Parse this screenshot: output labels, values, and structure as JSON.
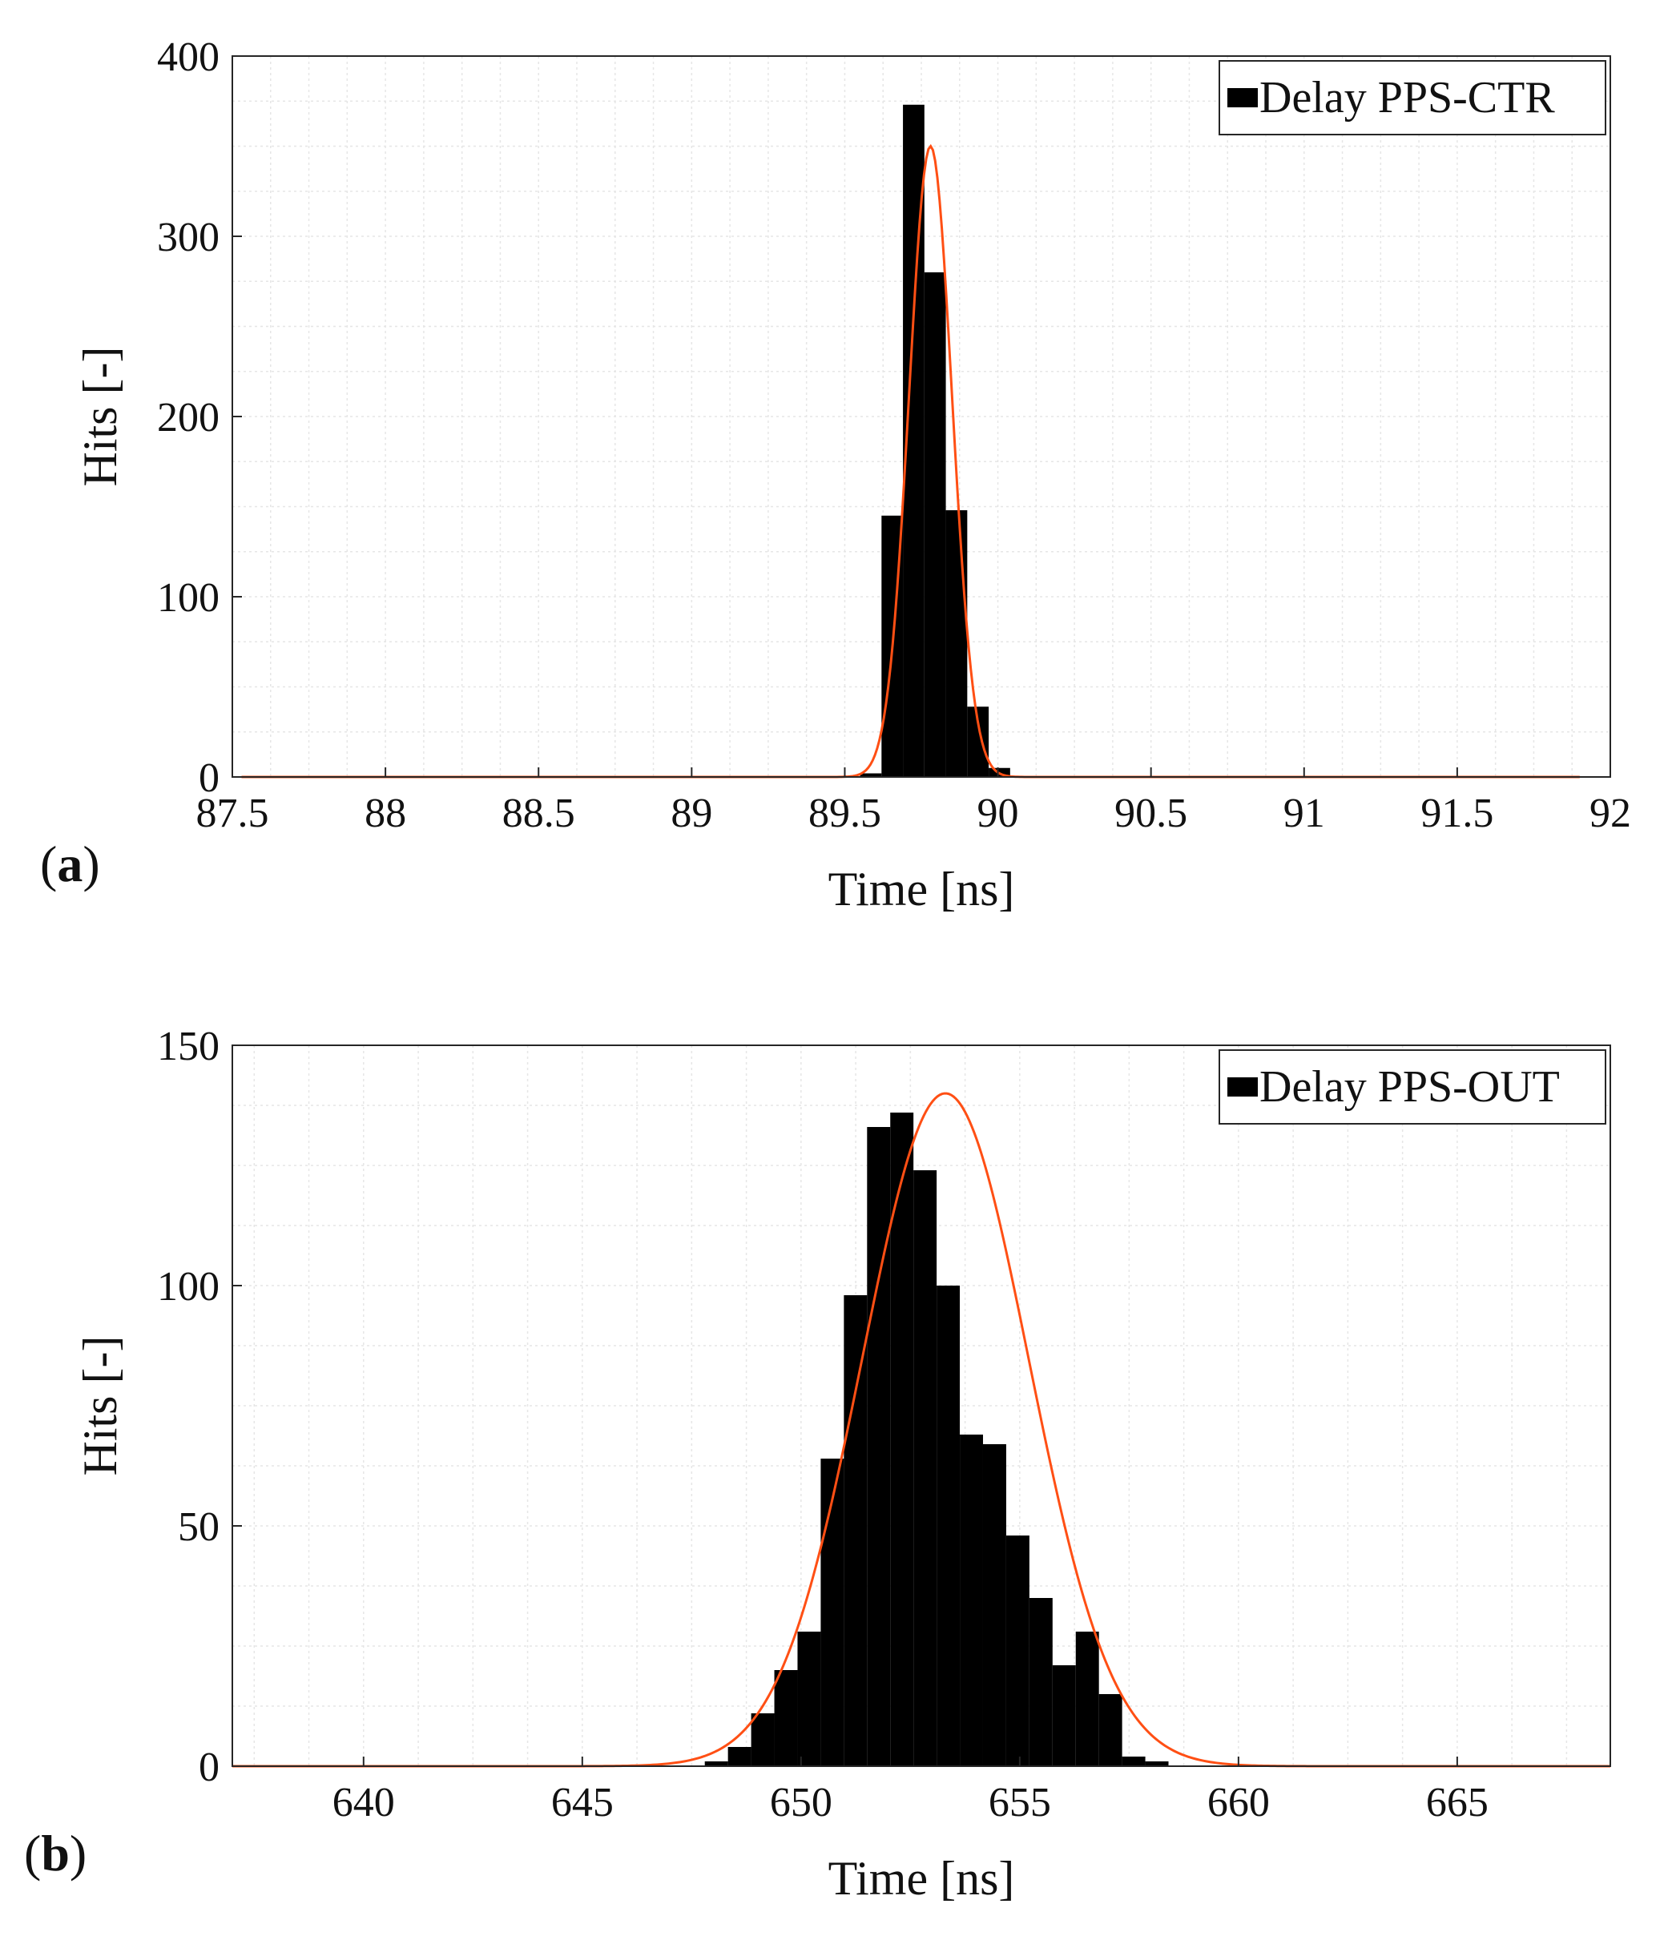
{
  "colors": {
    "bars": "#000000",
    "fit_curve": "#ff4f14",
    "grid": "#e6e6e6",
    "axes": "#262626"
  },
  "chart_data": [
    {
      "type": "bar",
      "panel_label": "a",
      "xlabel": "Time [ns]",
      "ylabel": "Hits [-]",
      "xlim": [
        87.5,
        92
      ],
      "ylim": [
        0,
        400
      ],
      "xticks": [
        87.5,
        88,
        88.5,
        89,
        89.5,
        90,
        90.5,
        91,
        91.5,
        92
      ],
      "xtick_labels": [
        "87.5",
        "88",
        "88.5",
        "89",
        "89.5",
        "90",
        "90.5",
        "91",
        "91.5",
        "92"
      ],
      "yticks": [
        0,
        100,
        200,
        300,
        400
      ],
      "ytick_labels": [
        "0",
        "100",
        "200",
        "300",
        "400"
      ],
      "grid": true,
      "legend": {
        "position": "top-right",
        "entries": [
          "Delay PPS-CTR"
        ]
      },
      "series": [
        {
          "name": "Delay PPS-CTR",
          "kind": "histogram",
          "bin_edges": [
            89.55,
            89.62,
            89.69,
            89.76,
            89.83,
            89.9,
            89.97,
            90.04
          ],
          "values": [
            2,
            145,
            373,
            280,
            148,
            39,
            5
          ]
        },
        {
          "kind": "gaussian-fit",
          "mean": 89.78,
          "sigma": 0.07,
          "amplitude": 350,
          "x_range": [
            87.53,
            91.9
          ]
        }
      ]
    },
    {
      "type": "bar",
      "panel_label": "b",
      "xlabel": "Time [ns]",
      "ylabel": "Hits [-]",
      "xlim": [
        637,
        668.5
      ],
      "ylim": [
        0,
        150
      ],
      "xticks": [
        640,
        645,
        650,
        655,
        660,
        665
      ],
      "xtick_labels": [
        "640",
        "645",
        "650",
        "655",
        "660",
        "665"
      ],
      "yticks": [
        0,
        50,
        100,
        150
      ],
      "ytick_labels": [
        "0",
        "50",
        "100",
        "150"
      ],
      "grid": true,
      "legend": {
        "position": "top-right",
        "entries": [
          "Delay PPS-OUT"
        ]
      },
      "series": [
        {
          "name": "Delay PPS-OUT",
          "kind": "histogram",
          "bin_edges": [
            647.8,
            648.33,
            648.86,
            649.39,
            649.92,
            650.45,
            650.98,
            651.51,
            652.04,
            652.57,
            653.1,
            653.63,
            654.16,
            654.69,
            655.22,
            655.75,
            656.28,
            656.81,
            657.34,
            657.87,
            658.4,
            658.93
          ],
          "values": [
            1,
            4,
            11,
            20,
            28,
            64,
            98,
            133,
            136,
            124,
            100,
            69,
            67,
            48,
            35,
            21,
            28,
            15,
            2,
            1,
            0
          ]
        },
        {
          "kind": "gaussian-fit",
          "mean": 653.3,
          "sigma": 1.9,
          "amplitude": 140,
          "x_range": [
            637,
            668.5
          ]
        }
      ]
    }
  ]
}
